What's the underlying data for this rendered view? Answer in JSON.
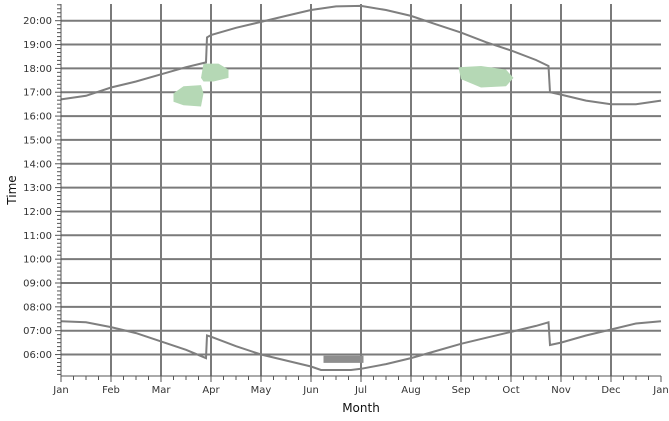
{
  "chart_data": {
    "type": "line",
    "title": "",
    "xlabel": "Month",
    "ylabel": "Time",
    "x_ticks": [
      "Jan",
      "Feb",
      "Mar",
      "Apr",
      "May",
      "Jun",
      "Jul",
      "Aug",
      "Sep",
      "Oct",
      "Nov",
      "Dec",
      "Jan"
    ],
    "y_ticks": [
      "06:00",
      "07:00",
      "08:00",
      "09:00",
      "10:00",
      "11:00",
      "12:00",
      "13:00",
      "14:00",
      "15:00",
      "16:00",
      "17:00",
      "18:00",
      "19:00",
      "20:00"
    ],
    "xlim": [
      0,
      12
    ],
    "ylim": [
      5.1,
      20.7
    ],
    "grid": true,
    "series": [
      {
        "values": [
          [
            0.0,
            16.7
          ],
          [
            0.5,
            16.85
          ],
          [
            1.0,
            17.2
          ],
          [
            1.5,
            17.45
          ],
          [
            2.0,
            17.75
          ],
          [
            2.5,
            18.05
          ],
          [
            2.9,
            18.25
          ],
          [
            2.92,
            19.3
          ],
          [
            3.0,
            19.4
          ],
          [
            3.5,
            19.7
          ],
          [
            4.0,
            19.95
          ],
          [
            4.5,
            20.2
          ],
          [
            5.0,
            20.45
          ],
          [
            5.5,
            20.6
          ],
          [
            6.0,
            20.62
          ],
          [
            6.5,
            20.45
          ],
          [
            7.0,
            20.2
          ],
          [
            7.5,
            19.85
          ],
          [
            8.0,
            19.5
          ],
          [
            8.5,
            19.1
          ],
          [
            9.0,
            18.75
          ],
          [
            9.5,
            18.35
          ],
          [
            9.75,
            18.1
          ],
          [
            9.78,
            17.0
          ],
          [
            10.0,
            16.9
          ],
          [
            10.5,
            16.65
          ],
          [
            11.0,
            16.5
          ],
          [
            11.5,
            16.5
          ],
          [
            12.0,
            16.65
          ]
        ]
      },
      {
        "values": [
          [
            0.0,
            7.4
          ],
          [
            0.5,
            7.35
          ],
          [
            1.0,
            7.15
          ],
          [
            1.5,
            6.9
          ],
          [
            2.0,
            6.55
          ],
          [
            2.5,
            6.2
          ],
          [
            2.9,
            5.85
          ],
          [
            2.92,
            6.8
          ],
          [
            3.0,
            6.75
          ],
          [
            3.5,
            6.35
          ],
          [
            4.0,
            6.0
          ],
          [
            4.5,
            5.75
          ],
          [
            5.0,
            5.5
          ],
          [
            5.2,
            5.35
          ],
          [
            5.8,
            5.35
          ],
          [
            6.0,
            5.4
          ],
          [
            6.5,
            5.6
          ],
          [
            7.0,
            5.85
          ],
          [
            7.5,
            6.15
          ],
          [
            8.0,
            6.45
          ],
          [
            8.5,
            6.7
          ],
          [
            9.0,
            6.95
          ],
          [
            9.5,
            7.2
          ],
          [
            9.75,
            7.35
          ],
          [
            9.78,
            6.4
          ],
          [
            10.0,
            6.5
          ],
          [
            10.5,
            6.8
          ],
          [
            11.0,
            7.05
          ],
          [
            11.5,
            7.3
          ],
          [
            12.0,
            7.4
          ]
        ]
      }
    ],
    "shaded_regions": [
      {
        "color": "#b5d8b5",
        "points": [
          [
            2.25,
            16.95
          ],
          [
            2.45,
            17.25
          ],
          [
            2.8,
            17.3
          ],
          [
            2.85,
            16.95
          ],
          [
            2.8,
            16.4
          ],
          [
            2.45,
            16.45
          ],
          [
            2.25,
            16.6
          ]
        ]
      },
      {
        "color": "#b5d8b5",
        "points": [
          [
            2.8,
            17.6
          ],
          [
            2.85,
            18.2
          ],
          [
            3.15,
            18.2
          ],
          [
            3.35,
            17.95
          ],
          [
            3.35,
            17.6
          ],
          [
            3.05,
            17.45
          ],
          [
            2.85,
            17.45
          ]
        ]
      },
      {
        "color": "#b5d8b5",
        "points": [
          [
            7.95,
            18.05
          ],
          [
            8.4,
            18.1
          ],
          [
            8.9,
            17.95
          ],
          [
            9.05,
            17.6
          ],
          [
            8.9,
            17.25
          ],
          [
            8.4,
            17.2
          ],
          [
            8.0,
            17.55
          ]
        ]
      },
      {
        "color": "#8e8e8e",
        "points": [
          [
            5.25,
            5.95
          ],
          [
            6.05,
            5.95
          ],
          [
            6.05,
            5.65
          ],
          [
            5.25,
            5.65
          ]
        ]
      }
    ]
  },
  "colors": {
    "line": "#7f7f7f",
    "grid": "#7a7a7a",
    "axis": "#555555",
    "background": "#ffffff"
  }
}
